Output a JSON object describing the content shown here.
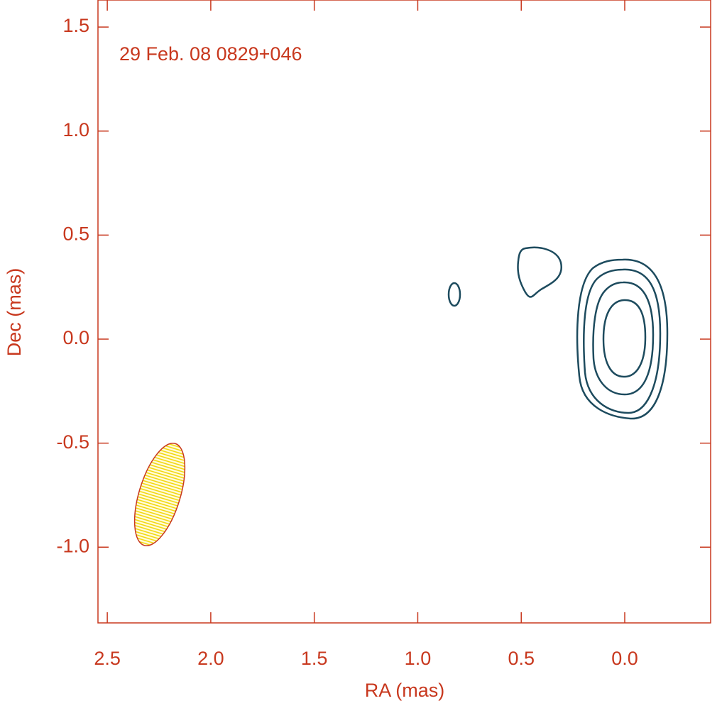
{
  "chart_data": {
    "type": "contour",
    "title": "29 Feb. 08  0829+046",
    "xlabel": "RA (mas)",
    "ylabel": "Dec (mas)",
    "xlim": [
      2.545,
      -0.415
    ],
    "ylim": [
      -1.364,
      1.63
    ],
    "xticks": [
      2.5,
      {
        "value": 2,
        "label": "2.0"
      },
      1.5,
      {
        "value": 1,
        "label": "1.0"
      },
      0.5,
      {
        "value": 0,
        "label": "0.0"
      }
    ],
    "yticks": [
      1.5,
      {
        "value": 1,
        "label": "1.0"
      },
      0.5,
      {
        "value": 0,
        "label": "0.0"
      },
      -0.5,
      {
        "value": -1,
        "label": "-1.0"
      }
    ],
    "color": "#c8381e"
  }
}
